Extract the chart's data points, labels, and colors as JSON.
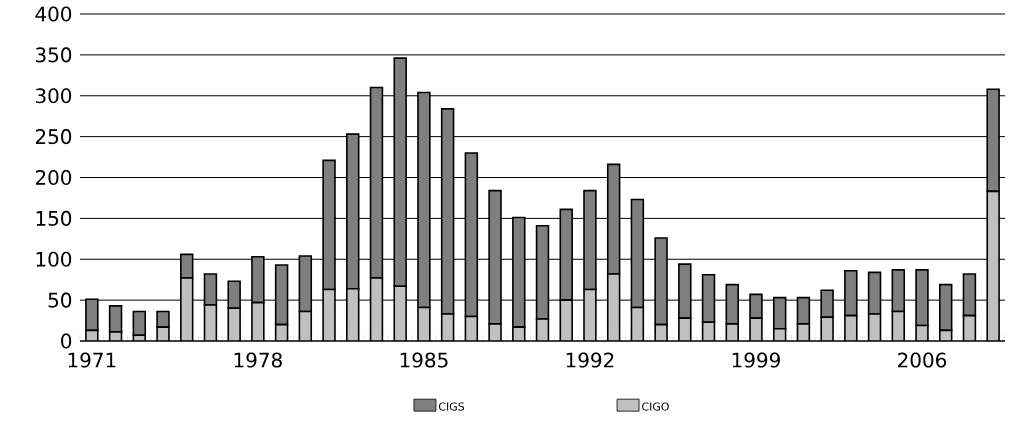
{
  "chart_data": {
    "type": "bar",
    "stacked": true,
    "categories": [
      "1971",
      null,
      null,
      null,
      null,
      null,
      null,
      "1978",
      null,
      null,
      null,
      null,
      null,
      null,
      "1985",
      null,
      null,
      null,
      null,
      null,
      null,
      "1992",
      null,
      null,
      null,
      null,
      null,
      null,
      "1999",
      null,
      null,
      null,
      null,
      null,
      null,
      "2006",
      null,
      null,
      null
    ],
    "series": [
      {
        "name": "CIGO",
        "color": "#c0c0c0",
        "values": [
          13,
          11,
          7,
          17,
          77,
          44,
          40,
          47,
          20,
          36,
          63,
          64,
          77,
          67,
          41,
          33,
          30,
          21,
          17,
          27,
          50,
          63,
          82,
          41,
          20,
          28,
          23,
          21,
          28,
          15,
          21,
          29,
          31,
          33,
          36,
          19,
          13,
          31,
          183
        ]
      },
      {
        "name": "CIGS",
        "color": "#7f7f7f",
        "values": [
          38,
          32,
          29,
          19,
          29,
          38,
          33,
          56,
          73,
          68,
          158,
          189,
          233,
          279,
          263,
          251,
          200,
          163,
          134,
          114,
          111,
          121,
          134,
          132,
          106,
          66,
          58,
          48,
          29,
          38,
          32,
          33,
          55,
          51,
          51,
          68,
          56,
          51,
          125
        ]
      }
    ],
    "ylim": [
      0,
      400
    ],
    "yticks": [
      0,
      50,
      100,
      150,
      200,
      250,
      300,
      350,
      400
    ],
    "grid": "y",
    "legend": "bottom"
  }
}
